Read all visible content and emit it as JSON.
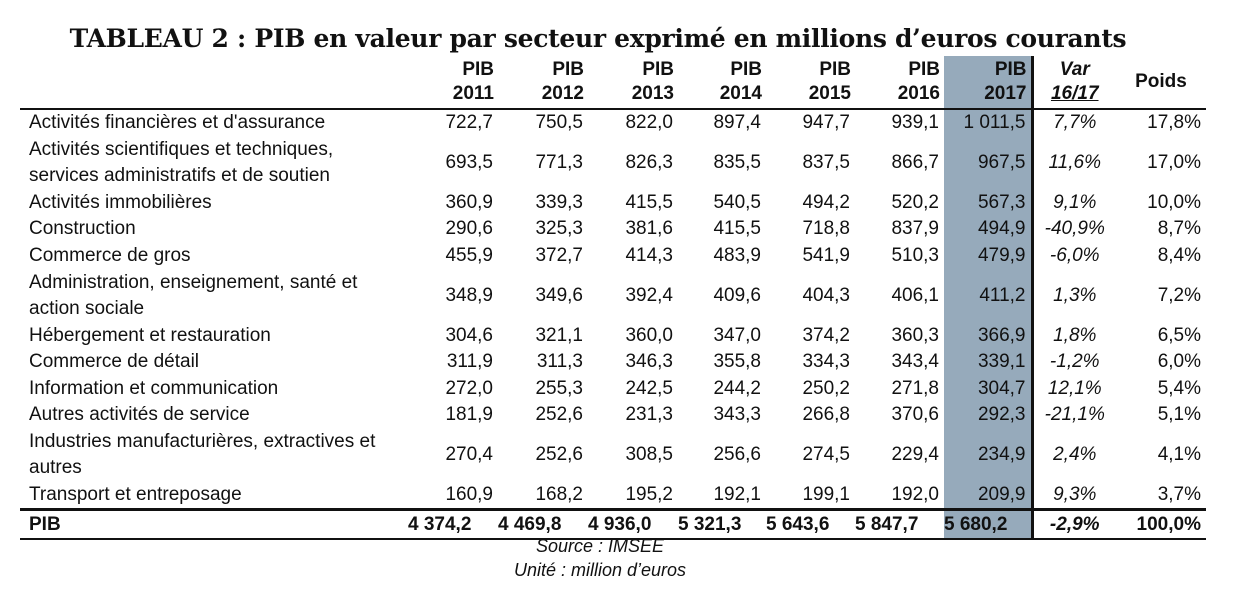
{
  "title": "TABLEAU 2 : PIB en valeur par secteur exprimé en millions d’euros courants",
  "headers": {
    "pib": [
      "PIB",
      "PIB",
      "PIB",
      "PIB",
      "PIB",
      "PIB",
      "PIB"
    ],
    "years": [
      "2011",
      "2012",
      "2013",
      "2014",
      "2015",
      "2016",
      "2017"
    ],
    "var_line1": "Var",
    "var_line2": "16/17",
    "poids": "Poids"
  },
  "rows": [
    {
      "label": "Activités financières et d'assurance",
      "values": [
        "722,7",
        "750,5",
        "822,0",
        "897,4",
        "947,7",
        "939,1",
        "1 011,5"
      ],
      "var": "7,7%",
      "poids": "17,8%"
    },
    {
      "label": "Activités scientifiques et techniques, services administratifs et de soutien",
      "values": [
        "693,5",
        "771,3",
        "826,3",
        "835,5",
        "837,5",
        "866,7",
        "967,5"
      ],
      "var": "11,6%",
      "poids": "17,0%"
    },
    {
      "label": "Activités immobilières",
      "values": [
        "360,9",
        "339,3",
        "415,5",
        "540,5",
        "494,2",
        "520,2",
        "567,3"
      ],
      "var": "9,1%",
      "poids": "10,0%"
    },
    {
      "label": "Construction",
      "values": [
        "290,6",
        "325,3",
        "381,6",
        "415,5",
        "718,8",
        "837,9",
        "494,9"
      ],
      "var": "-40,9%",
      "poids": "8,7%"
    },
    {
      "label": "Commerce de gros",
      "values": [
        "455,9",
        "372,7",
        "414,3",
        "483,9",
        "541,9",
        "510,3",
        "479,9"
      ],
      "var": "-6,0%",
      "poids": "8,4%"
    },
    {
      "label": "Administration, enseignement, santé et action sociale",
      "values": [
        "348,9",
        "349,6",
        "392,4",
        "409,6",
        "404,3",
        "406,1",
        "411,2"
      ],
      "var": "1,3%",
      "poids": "7,2%"
    },
    {
      "label": "Hébergement et restauration",
      "values": [
        "304,6",
        "321,1",
        "360,0",
        "347,0",
        "374,2",
        "360,3",
        "366,9"
      ],
      "var": "1,8%",
      "poids": "6,5%"
    },
    {
      "label": "Commerce de détail",
      "values": [
        "311,9",
        "311,3",
        "346,3",
        "355,8",
        "334,3",
        "343,4",
        "339,1"
      ],
      "var": "-1,2%",
      "poids": "6,0%"
    },
    {
      "label": "Information et communication",
      "values": [
        "272,0",
        "255,3",
        "242,5",
        "244,2",
        "250,2",
        "271,8",
        "304,7"
      ],
      "var": "12,1%",
      "poids": "5,4%"
    },
    {
      "label": "Autres activités de service",
      "values": [
        "181,9",
        "252,6",
        "231,3",
        "343,3",
        "266,8",
        "370,6",
        "292,3"
      ],
      "var": "-21,1%",
      "poids": "5,1%"
    },
    {
      "label": "Industries manufacturières, extractives et autres",
      "values": [
        "270,4",
        "252,6",
        "308,5",
        "256,6",
        "274,5",
        "229,4",
        "234,9"
      ],
      "var": "2,4%",
      "poids": "4,1%"
    },
    {
      "label": "Transport et entreposage",
      "values": [
        "160,9",
        "168,2",
        "195,2",
        "192,1",
        "199,1",
        "192,0",
        "209,9"
      ],
      "var": "9,3%",
      "poids": "3,7%"
    }
  ],
  "total": {
    "label": "PIB",
    "values": [
      "4 374,2",
      "4 469,8",
      "4 936,0",
      "5 321,3",
      "5 643,6",
      "5 847,7",
      "5 680,2"
    ],
    "var": "-2,9%",
    "poids": "100,0%"
  },
  "source": "Source : IMSEE",
  "unit": "Unité : million d’euros",
  "colors": {
    "highlight": "#96aabb",
    "text": "#111111"
  }
}
